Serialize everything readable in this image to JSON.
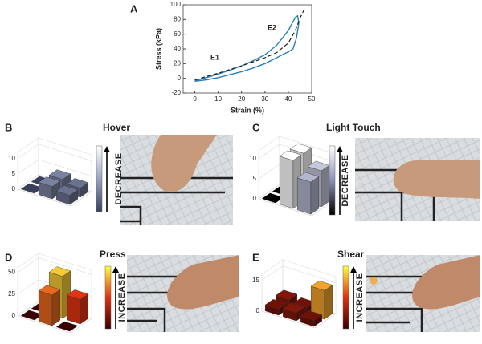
{
  "chart_data": [
    {
      "type": "line",
      "panel_label": "A",
      "x_label": "Strain (%)",
      "y_label": "Stress (kPa)",
      "xlim": [
        -5,
        50
      ],
      "xticks": [
        0,
        10,
        20,
        30,
        40,
        50
      ],
      "ylim": [
        -20,
        100
      ],
      "yticks": [
        -20,
        0,
        20,
        40,
        60,
        80,
        100
      ],
      "annotations": [
        "E1",
        "E2"
      ],
      "series": [
        {
          "color": "#2a7fb8",
          "linestyle": "solid",
          "x": [
            0,
            5,
            10,
            15,
            20,
            25,
            30,
            35,
            38,
            40,
            42,
            43.5,
            44.5,
            44,
            43,
            40,
            35,
            30,
            25,
            20,
            15,
            10,
            5,
            0
          ],
          "values": [
            -4,
            -2,
            1,
            5,
            9,
            14,
            20,
            28,
            33,
            36,
            40,
            55,
            75,
            85,
            83,
            65,
            45,
            32,
            24,
            17,
            11,
            6,
            1,
            -3
          ]
        },
        {
          "color": "#222222",
          "linestyle": "dashed",
          "x": [
            0,
            10,
            20,
            30,
            35,
            40,
            43,
            45,
            47
          ],
          "values": [
            -2,
            7,
            17,
            28,
            35,
            48,
            65,
            82,
            95
          ]
        }
      ]
    },
    {
      "type": "bar3d",
      "panel_label": "B",
      "title": "Hover",
      "colorbar_label": "DECREASE",
      "zlim": [
        0,
        12
      ],
      "zticks": [
        0,
        5,
        10
      ],
      "colormap": [
        "#3b3f5e",
        "#9aa3c4",
        "#ffffff"
      ],
      "values": [
        [
          0,
          4,
          3
        ],
        [
          0,
          4,
          3
        ]
      ]
    },
    {
      "type": "bar3d",
      "panel_label": "C",
      "title": "Light Touch",
      "colorbar_label": "DECREASE",
      "zlim": [
        0,
        12
      ],
      "zticks": [
        0,
        5,
        10
      ],
      "colormap": [
        "#000000",
        "#8b91b8",
        "#ffffff"
      ],
      "values": [
        [
          0,
          12,
          9
        ],
        [
          0,
          12,
          8
        ]
      ]
    },
    {
      "type": "bar3d",
      "panel_label": "D",
      "title": "Press",
      "colorbar_label": "INCREASE",
      "zlim": [
        0,
        55
      ],
      "zticks": [
        0,
        25,
        50
      ],
      "colormap": [
        "#3a0000",
        "#e03010",
        "#ffff40"
      ],
      "values": [
        [
          0,
          48,
          28
        ],
        [
          0,
          35,
          0
        ]
      ]
    },
    {
      "type": "bar3d",
      "panel_label": "E",
      "title": "Shear",
      "colorbar_label": "INCREASE",
      "zlim": [
        0,
        18
      ],
      "zticks": [
        0,
        15
      ],
      "colormap": [
        "#3a0000",
        "#e03010",
        "#ffff40"
      ],
      "values": [
        [
          4,
          3,
          14
        ],
        [
          3,
          4,
          3
        ]
      ]
    }
  ]
}
